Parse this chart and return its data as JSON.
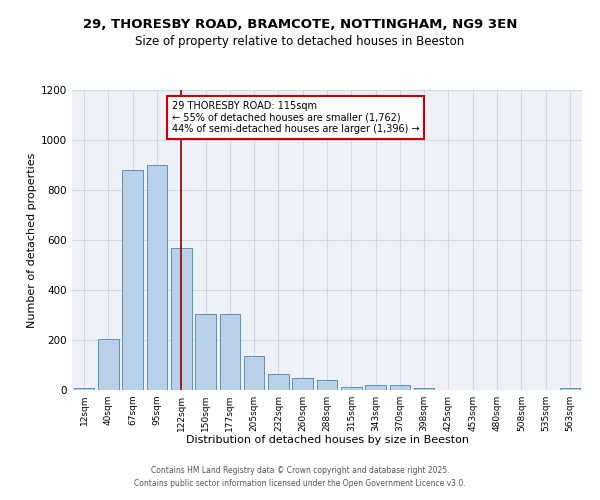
{
  "title": "29, THORESBY ROAD, BRAMCOTE, NOTTINGHAM, NG9 3EN",
  "subtitle": "Size of property relative to detached houses in Beeston",
  "xlabel": "Distribution of detached houses by size in Beeston",
  "ylabel": "Number of detached properties",
  "bar_labels": [
    "12sqm",
    "40sqm",
    "67sqm",
    "95sqm",
    "122sqm",
    "150sqm",
    "177sqm",
    "205sqm",
    "232sqm",
    "260sqm",
    "288sqm",
    "315sqm",
    "343sqm",
    "370sqm",
    "398sqm",
    "425sqm",
    "453sqm",
    "480sqm",
    "508sqm",
    "535sqm",
    "563sqm"
  ],
  "bar_values": [
    10,
    205,
    880,
    900,
    570,
    305,
    305,
    135,
    65,
    48,
    42,
    13,
    20,
    20,
    8,
    2,
    2,
    2,
    1,
    1,
    8
  ],
  "bar_color": "#b8d0e8",
  "bar_edgecolor": "#5a8fc0",
  "bar_linewidth": 0.7,
  "grid_color": "#ccd8e8",
  "bg_color": "#eef2f8",
  "vline_x_idx": 4,
  "vline_color": "#8b0000",
  "annotation_text": "29 THORESBY ROAD: 115sqm\n← 55% of detached houses are smaller (1,762)\n44% of semi-detached houses are larger (1,396) →",
  "annotation_box_edgecolor": "#cc0000",
  "ylim": [
    0,
    1200
  ],
  "yticks": [
    0,
    200,
    400,
    600,
    800,
    1000,
    1200
  ],
  "footer_line1": "Contains HM Land Registry data © Crown copyright and database right 2025.",
  "footer_line2": "Contains public sector information licensed under the Open Government Licence v3.0."
}
